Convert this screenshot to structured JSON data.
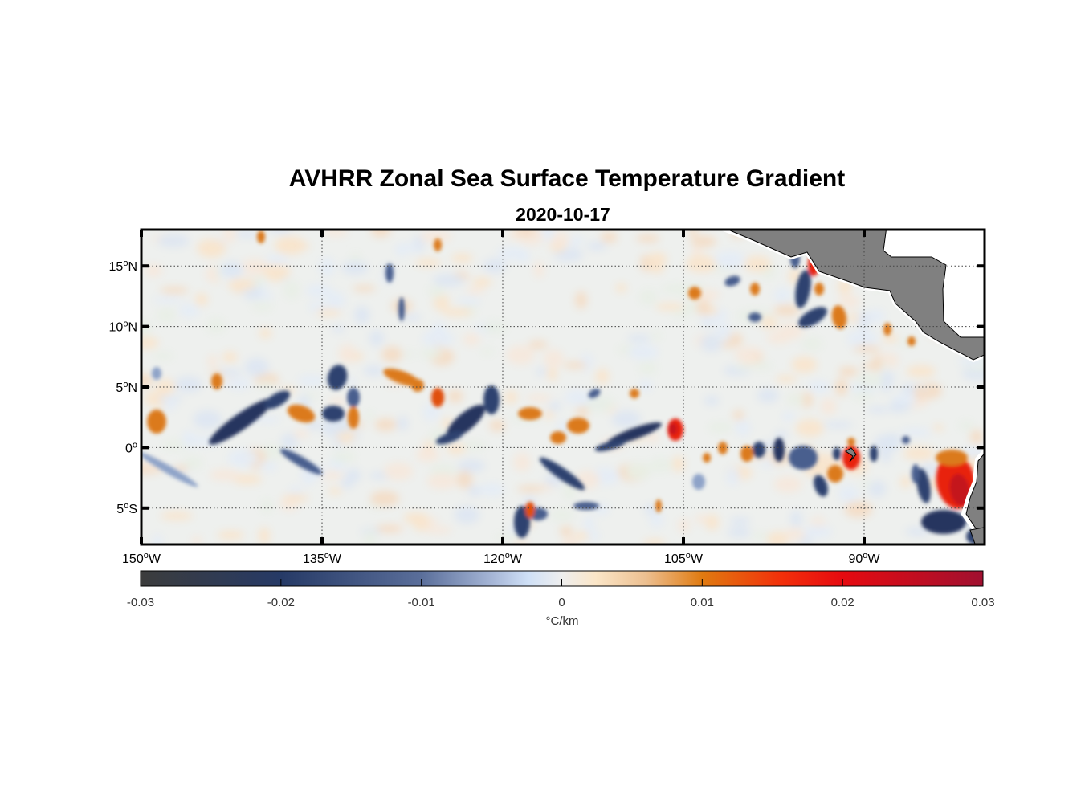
{
  "title": "AVHRR Zonal Sea Surface Temperature Gradient",
  "subtitle": "2020-10-17",
  "chart_data": {
    "type": "heatmap",
    "title": "AVHRR Zonal Sea Surface Temperature Gradient",
    "subtitle": "2020-10-17",
    "lon_range": [
      -150,
      -80
    ],
    "lat_range": [
      -8,
      18
    ],
    "grid": true,
    "x_ticks": [
      {
        "deg": "150",
        "hemi": "W",
        "value": -150
      },
      {
        "deg": "135",
        "hemi": "W",
        "value": -135
      },
      {
        "deg": "120",
        "hemi": "W",
        "value": -120
      },
      {
        "deg": "105",
        "hemi": "W",
        "value": -105
      },
      {
        "deg": "90",
        "hemi": "W",
        "value": -90
      }
    ],
    "y_ticks": [
      {
        "deg": "15",
        "hemi": "N",
        "value": 15
      },
      {
        "deg": "10",
        "hemi": "N",
        "value": 10
      },
      {
        "deg": "5",
        "hemi": "N",
        "value": 5
      },
      {
        "deg": "0",
        "hemi": "",
        "value": 0
      },
      {
        "deg": "5",
        "hemi": "S",
        "value": -5
      }
    ],
    "colorbar": {
      "range": [
        -0.03,
        0.03
      ],
      "ticks": [
        "-0.03",
        "-0.02",
        "-0.01",
        "0",
        "0.01",
        "0.02",
        "0.03"
      ],
      "label": "°C/km",
      "colors": [
        "#3c3c3c",
        "#263a66",
        "#5a6e9a",
        "#cfe0f6",
        "#eeeeee",
        "#fbe6c8",
        "#e07a10",
        "#f0200a",
        "#a01030"
      ]
    },
    "land_color": "#808080"
  }
}
